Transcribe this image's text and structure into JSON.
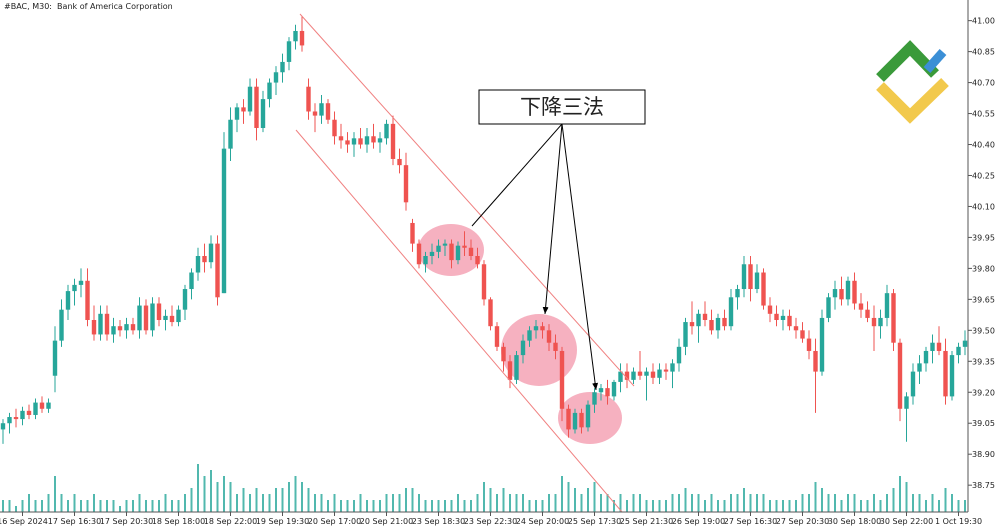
{
  "chart_data": {
    "type": "candlestick",
    "title": "#BAC, M30:  Bank of America Corporation",
    "annotation": "下降三法",
    "up_color": "#26a69a",
    "down_color": "#ef5350",
    "volume_color": "#26a69a",
    "ylim": [
      38.62,
      41.1
    ],
    "yticks": [
      {
        "value": 41.0,
        "label": "41.00"
      },
      {
        "value": 40.85,
        "label": "40.85"
      },
      {
        "value": 40.7,
        "label": "40.70"
      },
      {
        "value": 40.55,
        "label": "40.55"
      },
      {
        "value": 40.4,
        "label": "40.40"
      },
      {
        "value": 40.25,
        "label": "40.25"
      },
      {
        "value": 40.1,
        "label": "40.10"
      },
      {
        "value": 39.95,
        "label": "39.95"
      },
      {
        "value": 39.8,
        "label": "39.80"
      },
      {
        "value": 39.65,
        "label": "39.65"
      },
      {
        "value": 39.5,
        "label": "39.50"
      },
      {
        "value": 39.35,
        "label": "39.35"
      },
      {
        "value": 39.2,
        "label": "39.20"
      },
      {
        "value": 39.05,
        "label": "39.05"
      },
      {
        "value": 38.9,
        "label": "38.90"
      },
      {
        "value": 38.75,
        "label": "38.75"
      }
    ],
    "categories": [
      null,
      null,
      null,
      "16 Sep 2024",
      null,
      null,
      null,
      null,
      null,
      null,
      null,
      "17 Sep 16:30",
      null,
      null,
      null,
      null,
      null,
      null,
      null,
      "17 Sep 20:30",
      null,
      null,
      null,
      null,
      null,
      null,
      null,
      "18 Sep 18:00",
      null,
      null,
      null,
      null,
      null,
      null,
      null,
      "18 Sep 22:00",
      null,
      null,
      null,
      null,
      null,
      null,
      null,
      "19 Sep 19:30",
      null,
      null,
      null,
      null,
      null,
      null,
      null,
      "20 Sep 17:00",
      null,
      null,
      null,
      null,
      null,
      null,
      null,
      "20 Sep 21:00",
      null,
      null,
      null,
      null,
      null,
      null,
      null,
      "23 Sep 18:30",
      null,
      null,
      null,
      null,
      null,
      null,
      null,
      "23 Sep 22:30",
      null,
      null,
      null,
      null,
      null,
      null,
      null,
      "24 Sep 20:00",
      null,
      null,
      null,
      null,
      null,
      null,
      null,
      "25 Sep 17:30",
      null,
      null,
      null,
      null,
      null,
      null,
      null,
      "25 Sep 21:30",
      null,
      null,
      null,
      null,
      null,
      null,
      null,
      "26 Sep 19:00",
      null,
      null,
      null,
      null,
      null,
      null,
      null,
      "27 Sep 16:30",
      null,
      null,
      null,
      null,
      null,
      null,
      null,
      "27 Sep 20:30",
      null,
      null,
      null,
      null,
      null,
      null,
      null,
      "30 Sep 18:00",
      null,
      null,
      null,
      null,
      null,
      null,
      null,
      "30 Sep 22:00",
      null,
      null,
      null,
      null,
      null,
      null,
      null,
      "1 Oct 19:30",
      null
    ],
    "ohlc": [
      [
        39.02,
        39.07,
        38.95,
        39.05
      ],
      [
        39.05,
        39.1,
        39.0,
        39.08
      ],
      [
        39.08,
        39.12,
        39.03,
        39.07
      ],
      [
        39.07,
        39.13,
        39.04,
        39.11
      ],
      [
        39.11,
        39.14,
        39.07,
        39.09
      ],
      [
        39.09,
        39.17,
        39.07,
        39.15
      ],
      [
        39.15,
        39.18,
        39.1,
        39.12
      ],
      [
        39.12,
        39.17,
        39.1,
        39.15
      ],
      [
        39.28,
        39.52,
        39.2,
        39.45
      ],
      [
        39.45,
        39.65,
        39.42,
        39.6
      ],
      [
        39.6,
        39.72,
        39.55,
        39.69
      ],
      [
        39.69,
        39.75,
        39.62,
        39.72
      ],
      [
        39.72,
        39.8,
        39.66,
        39.74
      ],
      [
        39.74,
        39.8,
        39.52,
        39.55
      ],
      [
        39.55,
        39.62,
        39.45,
        39.48
      ],
      [
        39.48,
        39.62,
        39.45,
        39.58
      ],
      [
        39.58,
        39.62,
        39.45,
        39.48
      ],
      [
        39.48,
        39.56,
        39.44,
        39.52
      ],
      [
        39.52,
        39.55,
        39.47,
        39.5
      ],
      [
        39.5,
        39.56,
        39.46,
        39.53
      ],
      [
        39.53,
        39.56,
        39.48,
        39.5
      ],
      [
        39.5,
        39.66,
        39.46,
        39.62
      ],
      [
        39.62,
        39.65,
        39.48,
        39.5
      ],
      [
        39.5,
        39.66,
        39.47,
        39.63
      ],
      [
        39.63,
        39.66,
        39.52,
        39.55
      ],
      [
        39.55,
        39.6,
        39.5,
        39.57
      ],
      [
        39.57,
        39.62,
        39.52,
        39.54
      ],
      [
        39.54,
        39.62,
        39.52,
        39.6
      ],
      [
        39.6,
        39.72,
        39.55,
        39.7
      ],
      [
        39.7,
        39.8,
        39.65,
        39.78
      ],
      [
        39.78,
        39.9,
        39.74,
        39.86
      ],
      [
        39.86,
        39.92,
        39.78,
        39.83
      ],
      [
        39.83,
        39.96,
        39.8,
        39.92
      ],
      [
        39.92,
        39.96,
        39.62,
        39.66
      ],
      [
        39.68,
        40.46,
        39.68,
        40.38
      ],
      [
        40.38,
        40.58,
        40.32,
        40.52
      ],
      [
        40.52,
        40.6,
        40.46,
        40.58
      ],
      [
        40.58,
        40.62,
        40.5,
        40.56
      ],
      [
        40.56,
        40.72,
        40.54,
        40.68
      ],
      [
        40.68,
        40.72,
        40.42,
        40.48
      ],
      [
        40.48,
        40.66,
        40.46,
        40.62
      ],
      [
        40.62,
        40.72,
        40.58,
        40.7
      ],
      [
        40.7,
        40.78,
        40.64,
        40.75
      ],
      [
        40.75,
        40.84,
        40.7,
        40.8
      ],
      [
        40.8,
        40.92,
        40.76,
        40.9
      ],
      [
        40.9,
        40.98,
        40.86,
        40.95
      ],
      [
        40.95,
        41.02,
        40.85,
        40.88
      ],
      [
        40.68,
        40.72,
        40.52,
        40.56
      ],
      [
        40.56,
        40.6,
        40.46,
        40.54
      ],
      [
        40.54,
        40.64,
        40.5,
        40.6
      ],
      [
        40.6,
        40.62,
        40.5,
        40.52
      ],
      [
        40.52,
        40.56,
        40.4,
        40.44
      ],
      [
        40.44,
        40.5,
        40.38,
        40.42
      ],
      [
        40.42,
        40.46,
        40.36,
        40.4
      ],
      [
        40.4,
        40.46,
        40.34,
        40.43
      ],
      [
        40.43,
        40.48,
        40.38,
        40.4
      ],
      [
        40.4,
        40.48,
        40.36,
        40.44
      ],
      [
        40.44,
        40.5,
        40.38,
        40.41
      ],
      [
        40.41,
        40.46,
        40.36,
        40.43
      ],
      [
        40.43,
        40.52,
        40.4,
        40.5
      ],
      [
        40.5,
        40.54,
        40.3,
        40.33
      ],
      [
        40.33,
        40.38,
        40.26,
        40.3
      ],
      [
        40.3,
        40.36,
        40.08,
        40.12
      ],
      [
        40.02,
        40.04,
        39.88,
        39.92
      ],
      [
        39.92,
        39.94,
        39.8,
        39.82
      ],
      [
        39.82,
        39.88,
        39.78,
        39.86
      ],
      [
        39.86,
        39.92,
        39.82,
        39.88
      ],
      [
        39.88,
        39.94,
        39.85,
        39.91
      ],
      [
        39.91,
        39.94,
        39.86,
        39.92
      ],
      [
        39.92,
        39.94,
        39.8,
        39.84
      ],
      [
        39.84,
        39.93,
        39.82,
        39.91
      ],
      [
        39.91,
        39.98,
        39.86,
        39.9
      ],
      [
        39.9,
        39.94,
        39.84,
        39.86
      ],
      [
        39.86,
        39.9,
        39.8,
        39.82
      ],
      [
        39.82,
        39.84,
        39.62,
        39.65
      ],
      [
        39.65,
        39.66,
        39.5,
        39.52
      ],
      [
        39.52,
        39.54,
        39.4,
        39.42
      ],
      [
        39.42,
        39.44,
        39.3,
        39.35
      ],
      [
        39.35,
        39.38,
        39.22,
        39.26
      ],
      [
        39.26,
        39.4,
        39.24,
        39.38
      ],
      [
        39.38,
        39.48,
        39.34,
        39.45
      ],
      [
        39.45,
        39.52,
        39.42,
        39.5
      ],
      [
        39.5,
        39.55,
        39.46,
        39.52
      ],
      [
        39.52,
        39.54,
        39.46,
        39.5
      ],
      [
        39.5,
        39.53,
        39.4,
        39.44
      ],
      [
        39.44,
        39.48,
        39.36,
        39.4
      ],
      [
        39.4,
        39.42,
        39.06,
        39.12
      ],
      [
        39.12,
        39.14,
        38.98,
        39.02
      ],
      [
        39.02,
        39.12,
        39.0,
        39.1
      ],
      [
        39.1,
        39.12,
        39.0,
        39.03
      ],
      [
        39.03,
        39.16,
        39.01,
        39.14
      ],
      [
        39.14,
        39.22,
        39.1,
        39.2
      ],
      [
        39.2,
        39.24,
        39.16,
        39.22
      ],
      [
        39.22,
        39.26,
        39.14,
        39.18
      ],
      [
        39.18,
        39.26,
        39.16,
        39.25
      ],
      [
        39.25,
        39.34,
        39.2,
        39.3
      ],
      [
        39.3,
        39.34,
        39.22,
        39.26
      ],
      [
        39.26,
        39.32,
        39.24,
        39.3
      ],
      [
        39.3,
        39.4,
        39.26,
        39.28
      ],
      [
        39.28,
        39.32,
        39.16,
        39.3
      ],
      [
        39.3,
        39.34,
        39.24,
        39.27
      ],
      [
        39.27,
        39.34,
        39.24,
        39.31
      ],
      [
        39.31,
        39.34,
        39.26,
        39.3
      ],
      [
        39.3,
        39.36,
        39.22,
        39.34
      ],
      [
        39.34,
        39.46,
        39.3,
        39.42
      ],
      [
        39.42,
        39.56,
        39.38,
        39.54
      ],
      [
        39.54,
        39.64,
        39.48,
        39.52
      ],
      [
        39.52,
        39.6,
        39.44,
        39.58
      ],
      [
        39.58,
        39.64,
        39.52,
        39.55
      ],
      [
        39.55,
        39.6,
        39.48,
        39.5
      ],
      [
        39.5,
        39.58,
        39.46,
        39.56
      ],
      [
        39.56,
        39.6,
        39.5,
        39.52
      ],
      [
        39.52,
        39.7,
        39.5,
        39.66
      ],
      [
        39.66,
        39.72,
        39.6,
        39.7
      ],
      [
        39.7,
        39.86,
        39.66,
        39.82
      ],
      [
        39.82,
        39.86,
        39.64,
        39.7
      ],
      [
        39.7,
        39.82,
        39.68,
        39.78
      ],
      [
        39.78,
        39.8,
        39.6,
        39.62
      ],
      [
        39.62,
        39.66,
        39.54,
        39.58
      ],
      [
        39.58,
        39.62,
        39.52,
        39.55
      ],
      [
        39.55,
        39.6,
        39.5,
        39.57
      ],
      [
        39.57,
        39.6,
        39.5,
        39.52
      ],
      [
        39.52,
        39.56,
        39.46,
        39.5
      ],
      [
        39.5,
        39.54,
        39.44,
        39.46
      ],
      [
        39.46,
        39.5,
        39.36,
        39.4
      ],
      [
        39.4,
        39.46,
        39.1,
        39.3
      ],
      [
        39.3,
        39.6,
        39.28,
        39.56
      ],
      [
        39.56,
        39.68,
        39.54,
        39.66
      ],
      [
        39.66,
        39.74,
        39.6,
        39.7
      ],
      [
        39.7,
        39.76,
        39.62,
        39.65
      ],
      [
        39.65,
        39.76,
        39.62,
        39.74
      ],
      [
        39.74,
        39.78,
        39.6,
        39.63
      ],
      [
        39.63,
        39.68,
        39.56,
        39.6
      ],
      [
        39.6,
        39.64,
        39.54,
        39.56
      ],
      [
        39.56,
        39.62,
        39.4,
        39.52
      ],
      [
        39.52,
        39.6,
        39.46,
        39.56
      ],
      [
        39.56,
        39.72,
        39.52,
        39.68
      ],
      [
        39.68,
        39.7,
        39.4,
        39.44
      ],
      [
        39.44,
        39.46,
        39.06,
        39.12
      ],
      [
        39.12,
        39.2,
        38.96,
        39.18
      ],
      [
        39.18,
        39.34,
        39.14,
        39.3
      ],
      [
        39.3,
        39.38,
        39.24,
        39.34
      ],
      [
        39.34,
        39.42,
        39.3,
        39.4
      ],
      [
        39.4,
        39.48,
        39.34,
        39.44
      ],
      [
        39.44,
        39.52,
        39.38,
        39.4
      ],
      [
        39.4,
        39.46,
        39.14,
        39.18
      ],
      [
        39.18,
        39.4,
        39.16,
        39.38
      ],
      [
        39.38,
        39.44,
        39.34,
        39.42
      ],
      [
        39.42,
        39.5,
        39.38,
        39.45
      ]
    ],
    "volume": [
      2,
      2,
      1,
      2,
      3,
      2,
      2,
      3,
      6,
      3,
      2,
      3,
      2,
      2,
      3,
      2,
      2,
      2,
      1,
      2,
      2,
      3,
      2,
      2,
      2,
      3,
      2,
      2,
      3,
      4,
      8,
      6,
      7,
      5,
      6,
      5,
      3,
      4,
      3,
      4,
      3,
      3,
      4,
      4,
      5,
      6,
      5,
      4,
      3,
      3,
      2,
      3,
      2,
      2,
      2,
      3,
      2,
      2,
      2,
      3,
      3,
      3,
      4,
      4,
      3,
      2,
      2,
      2,
      2,
      2,
      3,
      2,
      2,
      3,
      5,
      4,
      3,
      4,
      3,
      3,
      3,
      2,
      2,
      2,
      3,
      3,
      6,
      5,
      4,
      3,
      4,
      5,
      3,
      3,
      2,
      3,
      2,
      3,
      3,
      2,
      2,
      2,
      2,
      3,
      3,
      4,
      3,
      3,
      2,
      3,
      2,
      2,
      3,
      3,
      4,
      3,
      3,
      3,
      2,
      2,
      2,
      2,
      2,
      3,
      3,
      5,
      4,
      3,
      3,
      2,
      3,
      3,
      2,
      2,
      3,
      2,
      3,
      4,
      6,
      5,
      3,
      3,
      2,
      3,
      2,
      4,
      3,
      2,
      2
    ]
  }
}
